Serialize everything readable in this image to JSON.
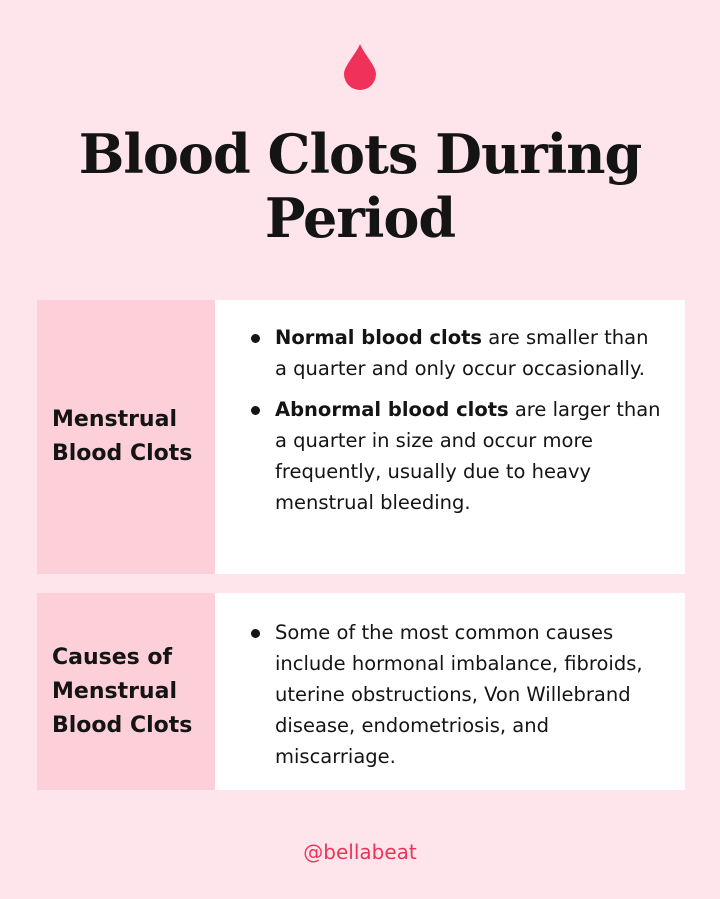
{
  "icon": "blood-drop-icon",
  "colors": {
    "background": "#fde5eb",
    "label_cell": "#fccfd9",
    "accent": "#f0325a"
  },
  "title_line1": "Blood Clots During",
  "title_line2": "Period",
  "sections": [
    {
      "label": "Menstrual Blood Clots",
      "items": [
        {
          "bold": "Normal blood clots",
          "text": " are smaller than a quarter and only occur occasionally."
        },
        {
          "bold": "Abnormal blood clots",
          "text": " are larger than a quarter in size and occur more frequently, usually due to heavy menstrual bleeding."
        }
      ]
    },
    {
      "label": "Causes of Menstrual Blood Clots",
      "items": [
        {
          "bold": "",
          "text": "Some of the most common causes include hormonal imbalance, fibroids, uterine obstructions, Von Willebrand disease, endometriosis, and miscarriage."
        }
      ]
    }
  ],
  "handle": "@bellabeat"
}
